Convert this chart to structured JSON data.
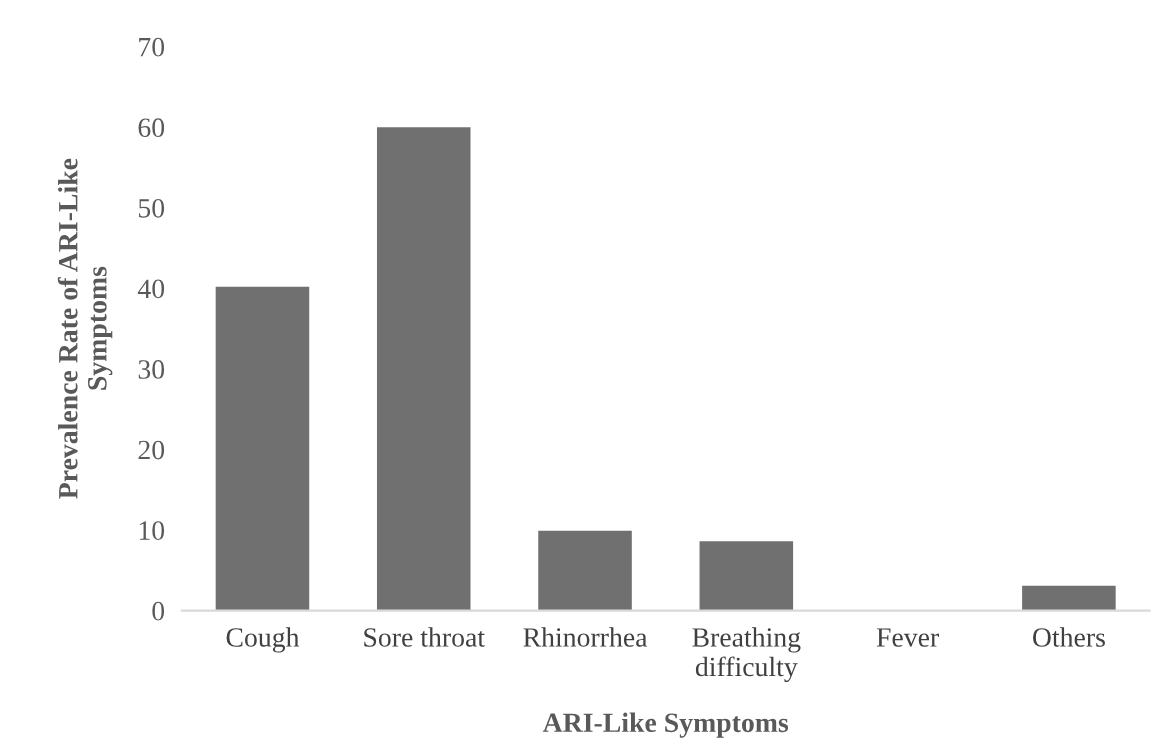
{
  "chart_data": {
    "type": "bar",
    "xlabel": "ARI-Like Symptoms",
    "ylabel": "Prevalence Rate of ARI-Like\nSymptoms",
    "categories": [
      "Cough",
      "Sore throat",
      "Rhinorrhea",
      "Breathing\ndifficulty",
      "Fever",
      "Others"
    ],
    "values": [
      40.2,
      60.0,
      9.9,
      8.6,
      0,
      3.1
    ],
    "color": "#707070",
    "ylim": [
      0,
      70
    ],
    "yticks": [
      0,
      10,
      20,
      30,
      40,
      50,
      60,
      70
    ],
    "grid": false,
    "legend": false
  }
}
